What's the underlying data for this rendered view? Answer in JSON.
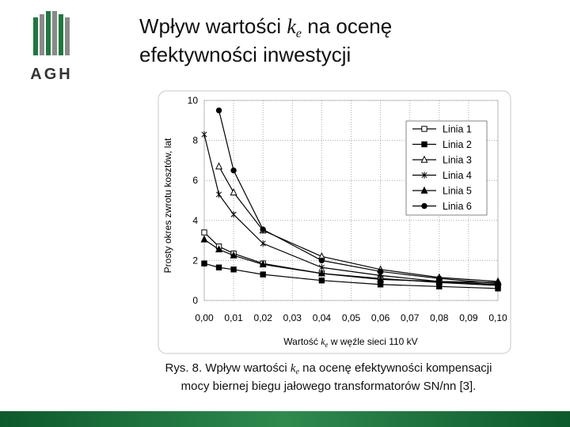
{
  "logo": {
    "text": "AGH"
  },
  "title": {
    "line1_before": "Wpływ wartości ",
    "symbol": "k",
    "subscript": "e",
    "line1_after": " na ocenę",
    "line2": "efektywności inwestycji"
  },
  "chart_data": {
    "type": "line",
    "y_label": "Prosty okres zwrotu kosztów, lat",
    "x_label": {
      "before": "Wartość ",
      "symbol": "k",
      "subscript": "e",
      "after": " w węźle sieci 110 kV"
    },
    "x": [
      0,
      0.005,
      0.01,
      0.02,
      0.04,
      0.06,
      0.08,
      0.1
    ],
    "xlim": [
      0,
      0.1
    ],
    "xticks": [
      {
        "value": 0,
        "label": "0,00"
      },
      {
        "value": 0.01,
        "label": "0,01"
      },
      {
        "value": 0.02,
        "label": "0,02"
      },
      {
        "value": 0.03,
        "label": "0,03"
      },
      {
        "value": 0.04,
        "label": "0,04"
      },
      {
        "value": 0.05,
        "label": "0,05"
      },
      {
        "value": 0.06,
        "label": "0,06"
      },
      {
        "value": 0.07,
        "label": "0,07"
      },
      {
        "value": 0.08,
        "label": "0,08"
      },
      {
        "value": 0.09,
        "label": "0,09"
      },
      {
        "value": 0.1,
        "label": "0,10"
      }
    ],
    "ylim": [
      0,
      10
    ],
    "yticks": [
      0,
      2,
      4,
      6,
      8,
      10
    ],
    "grid": true,
    "legend": "upper right",
    "series": [
      {
        "name": "Linia 1",
        "color": "#000000",
        "marker": "square-open",
        "values": [
          3.4,
          2.7,
          2.35,
          1.85,
          1.35,
          1.1,
          0.9,
          0.75
        ]
      },
      {
        "name": "Linia 2",
        "color": "#000000",
        "marker": "square-filled",
        "values": [
          1.85,
          1.65,
          1.55,
          1.3,
          1.0,
          0.8,
          0.7,
          0.6
        ]
      },
      {
        "name": "Linia 3",
        "color": "#000000",
        "marker": "triangle-open",
        "values": [
          null,
          6.7,
          5.4,
          3.5,
          2.2,
          1.55,
          1.15,
          0.95
        ]
      },
      {
        "name": "Linia 4",
        "color": "#000000",
        "marker": "asterisk",
        "values": [
          8.3,
          5.3,
          4.3,
          2.85,
          1.65,
          1.25,
          0.95,
          0.8
        ]
      },
      {
        "name": "Linia 5",
        "color": "#000000",
        "marker": "triangle-filled",
        "values": [
          3.05,
          2.55,
          2.25,
          1.8,
          1.35,
          1.05,
          0.95,
          0.9
        ]
      },
      {
        "name": "Linia 6",
        "color": "#000000",
        "marker": "circle-filled",
        "values": [
          null,
          9.5,
          6.5,
          3.55,
          2.0,
          1.45,
          1.1,
          0.85
        ]
      }
    ]
  },
  "caption": {
    "line1_before": "Rys. 8. Wpływ wartości ",
    "symbol": "k",
    "subscript": "e",
    "line1_after": " na ocenę efektywności kompensacji",
    "line2": "mocy biernej biegu jałowego transformatorów SN/nn [3]."
  }
}
